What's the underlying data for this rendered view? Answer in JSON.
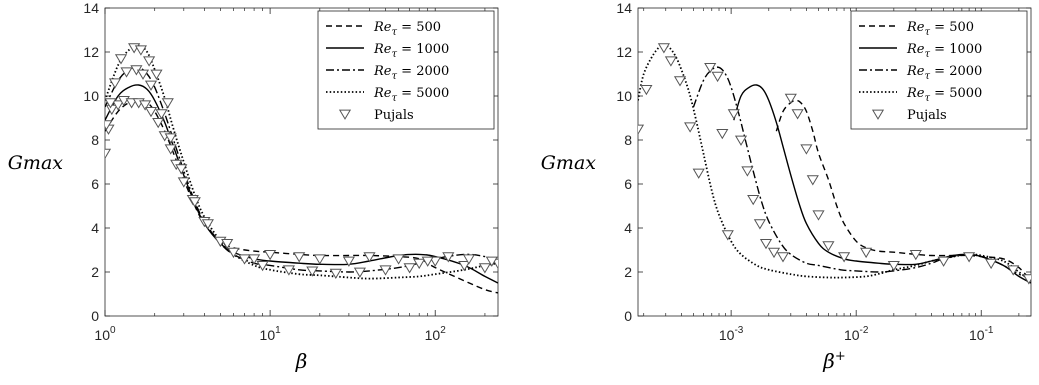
{
  "figure": {
    "panels": [
      "left",
      "right"
    ]
  },
  "chart_data": [
    {
      "type": "line",
      "xlabel": "β",
      "ylabel": "Gmax",
      "xscale": "log",
      "xlim": [
        1,
        240
      ],
      "ylim": [
        0,
        14
      ],
      "x_ticks": [
        1,
        10,
        100
      ],
      "x_tick_labels": [
        {
          "base": "10",
          "exp": "0"
        },
        {
          "base": "10",
          "exp": "1"
        },
        {
          "base": "10",
          "exp": "2"
        }
      ],
      "y_ticks": [
        0,
        2,
        4,
        6,
        8,
        10,
        12,
        14
      ],
      "y_tick_labels": [
        "0",
        "2",
        "4",
        "6",
        "8",
        "10",
        "12",
        "14"
      ],
      "legend": {
        "position": "top-right",
        "entries": [
          {
            "label": "Re_τ = 500",
            "style": "dashed"
          },
          {
            "label": "Re_τ = 1000",
            "style": "solid"
          },
          {
            "label": "Re_τ = 2000",
            "style": "dashdot"
          },
          {
            "label": "Re_τ = 5000",
            "style": "dotted"
          },
          {
            "label": "Pujals",
            "style": "triangle-marker"
          }
        ]
      },
      "series": [
        {
          "name": "Re_τ = 500",
          "style": "dashed",
          "x": [
            1,
            1.2,
            1.4,
            1.6,
            1.8,
            2,
            2.3,
            2.6,
            3,
            3.5,
            4,
            5,
            6,
            8,
            10,
            15,
            20,
            30,
            40,
            60,
            80,
            100,
            150,
            200,
            240
          ],
          "y": [
            8.4,
            9.3,
            9.7,
            9.8,
            9.7,
            9.3,
            8.4,
            7.4,
            6.2,
            5.0,
            4.2,
            3.4,
            3.1,
            2.95,
            2.9,
            2.8,
            2.75,
            2.75,
            2.75,
            2.7,
            2.6,
            2.2,
            1.6,
            1.2,
            1.05
          ]
        },
        {
          "name": "Re_τ = 1000",
          "style": "solid",
          "x": [
            1,
            1.2,
            1.4,
            1.6,
            1.8,
            2,
            2.3,
            2.6,
            3,
            3.5,
            4,
            5,
            6,
            8,
            10,
            15,
            20,
            30,
            40,
            60,
            80,
            100,
            150,
            200,
            240
          ],
          "y": [
            8.9,
            10.0,
            10.4,
            10.5,
            10.3,
            9.8,
            8.8,
            7.7,
            6.4,
            5.1,
            4.2,
            3.3,
            2.9,
            2.6,
            2.5,
            2.4,
            2.35,
            2.35,
            2.5,
            2.75,
            2.8,
            2.7,
            2.3,
            1.8,
            1.5
          ]
        },
        {
          "name": "Re_τ = 2000",
          "style": "dashdot",
          "x": [
            1,
            1.2,
            1.4,
            1.6,
            1.8,
            2,
            2.3,
            2.6,
            3,
            3.5,
            4,
            5,
            6,
            8,
            10,
            15,
            20,
            30,
            40,
            60,
            80,
            100,
            150,
            200,
            240
          ],
          "y": [
            9.5,
            10.7,
            11.2,
            11.3,
            11.0,
            10.4,
            9.2,
            8.0,
            6.6,
            5.2,
            4.3,
            3.3,
            2.8,
            2.4,
            2.3,
            2.1,
            2.05,
            2.0,
            2.05,
            2.2,
            2.4,
            2.6,
            2.8,
            2.7,
            2.5
          ]
        },
        {
          "name": "Re_τ = 5000",
          "style": "dotted",
          "x": [
            1,
            1.2,
            1.4,
            1.6,
            1.8,
            2,
            2.3,
            2.6,
            3,
            3.5,
            4,
            5,
            6,
            8,
            10,
            15,
            20,
            30,
            40,
            60,
            80,
            100,
            150,
            200,
            240
          ],
          "y": [
            9.8,
            11.4,
            12.1,
            12.3,
            12.0,
            11.2,
            9.9,
            8.5,
            7.0,
            5.5,
            4.5,
            3.4,
            2.8,
            2.3,
            2.1,
            1.9,
            1.85,
            1.75,
            1.7,
            1.75,
            1.8,
            1.9,
            2.1,
            2.3,
            2.4
          ]
        },
        {
          "name": "Pujals",
          "style": "triangle-marker",
          "x": [
            1,
            1.05,
            1.1,
            1.2,
            1.3,
            1.45,
            1.6,
            1.75,
            1.9,
            2.1,
            2.3,
            2.5,
            2.7,
            3,
            3.4,
            4,
            5,
            6,
            8,
            10,
            15,
            20,
            30,
            40,
            60,
            80,
            100,
            150,
            200,
            240,
            1.02,
            1.15,
            1.35,
            1.55,
            1.7,
            1.9,
            2.2,
            2.5,
            2.9,
            3.5,
            4.2,
            5.5,
            7,
            9,
            13,
            18,
            25,
            35,
            50,
            70,
            90,
            120,
            160,
            220,
            1.08,
            1.25,
            1.5,
            1.65,
            1.85,
            2.05,
            2.4
          ],
          "y": [
            7.4,
            8.5,
            9.4,
            9.6,
            9.8,
            9.7,
            9.7,
            9.6,
            9.3,
            8.8,
            8.2,
            7.6,
            6.9,
            6.1,
            5.3,
            4.3,
            3.4,
            2.9,
            2.6,
            2.8,
            2.7,
            2.6,
            2.5,
            2.7,
            2.6,
            2.4,
            2.5,
            2.3,
            2.2,
            2.4,
            8.7,
            10.6,
            11.1,
            11.2,
            11.0,
            10.5,
            9.2,
            8.1,
            6.7,
            5.2,
            4.2,
            3.3,
            2.6,
            2.3,
            2.1,
            2.05,
            1.95,
            2.0,
            2.1,
            2.2,
            2.5,
            2.7,
            2.6,
            2.5,
            9.7,
            11.7,
            12.2,
            12.1,
            11.6,
            11.0,
            9.7
          ]
        }
      ]
    },
    {
      "type": "line",
      "xlabel": "β+",
      "ylabel": "Gmax",
      "xscale": "log",
      "xlim": [
        0.00018,
        0.25
      ],
      "ylim": [
        0,
        14
      ],
      "x_ticks": [
        0.001,
        0.01,
        0.1
      ],
      "x_tick_labels": [
        {
          "base": "10",
          "exp": "-3"
        },
        {
          "base": "10",
          "exp": "-2"
        },
        {
          "base": "10",
          "exp": "-1"
        }
      ],
      "y_ticks": [
        0,
        2,
        4,
        6,
        8,
        10,
        12,
        14
      ],
      "y_tick_labels": [
        "0",
        "2",
        "4",
        "6",
        "8",
        "10",
        "12",
        "14"
      ],
      "legend": {
        "position": "top-right",
        "entries": [
          {
            "label": "Re_τ = 500",
            "style": "dashed"
          },
          {
            "label": "Re_τ = 1000",
            "style": "solid"
          },
          {
            "label": "Re_τ = 2000",
            "style": "dashdot"
          },
          {
            "label": "Re_τ = 5000",
            "style": "dotted"
          },
          {
            "label": "Pujals",
            "style": "triangle-marker"
          }
        ]
      },
      "series": [
        {
          "name": "Re_τ = 500",
          "style": "dashed",
          "x": [
            0.0023,
            0.0026,
            0.003,
            0.0033,
            0.0036,
            0.004,
            0.0045,
            0.005,
            0.006,
            0.007,
            0.008,
            0.01,
            0.012,
            0.015,
            0.02,
            0.03,
            0.04,
            0.06,
            0.08,
            0.1,
            0.15,
            0.2,
            0.25
          ],
          "y": [
            8.4,
            9.3,
            9.7,
            9.8,
            9.7,
            9.3,
            8.4,
            7.4,
            6.2,
            5.0,
            4.2,
            3.4,
            3.1,
            2.95,
            2.9,
            2.8,
            2.75,
            2.75,
            2.75,
            2.7,
            2.6,
            2.2,
            1.6
          ]
        },
        {
          "name": "Re_τ = 1000",
          "style": "solid",
          "x": [
            0.00105,
            0.0012,
            0.0014,
            0.0016,
            0.0018,
            0.002,
            0.0023,
            0.0026,
            0.003,
            0.0035,
            0.004,
            0.005,
            0.006,
            0.008,
            0.01,
            0.015,
            0.02,
            0.03,
            0.04,
            0.06,
            0.08,
            0.1,
            0.15,
            0.2,
            0.25
          ],
          "y": [
            8.9,
            10.0,
            10.4,
            10.5,
            10.3,
            9.8,
            8.8,
            7.7,
            6.4,
            5.1,
            4.2,
            3.3,
            2.9,
            2.6,
            2.5,
            2.4,
            2.35,
            2.35,
            2.5,
            2.75,
            2.8,
            2.7,
            2.3,
            1.8,
            1.5
          ]
        },
        {
          "name": "Re_τ = 2000",
          "style": "dashdot",
          "x": [
            0.0005,
            0.0006,
            0.0007,
            0.0008,
            0.0009,
            0.001,
            0.00115,
            0.0013,
            0.0015,
            0.00175,
            0.002,
            0.0025,
            0.003,
            0.004,
            0.005,
            0.0075,
            0.01,
            0.015,
            0.02,
            0.03,
            0.04,
            0.05,
            0.075,
            0.1,
            0.12,
            0.15,
            0.2,
            0.25
          ],
          "y": [
            9.5,
            10.7,
            11.2,
            11.3,
            11.0,
            10.4,
            9.2,
            8.0,
            6.6,
            5.2,
            4.3,
            3.3,
            2.8,
            2.4,
            2.3,
            2.1,
            2.05,
            2.0,
            2.05,
            2.2,
            2.4,
            2.6,
            2.8,
            2.7,
            2.55,
            2.3,
            1.9,
            1.7
          ]
        },
        {
          "name": "Re_τ = 5000",
          "style": "dotted",
          "x": [
            0.00018,
            0.0002,
            0.00024,
            0.00028,
            0.00032,
            0.00036,
            0.0004,
            0.00046,
            0.00052,
            0.0006,
            0.0007,
            0.0008,
            0.001,
            0.0012,
            0.0016,
            0.002,
            0.003,
            0.004,
            0.006,
            0.008,
            0.012,
            0.016,
            0.02,
            0.03,
            0.04,
            0.06,
            0.08,
            0.1,
            0.15,
            0.2,
            0.25
          ],
          "y": [
            9.8,
            11.0,
            11.9,
            12.3,
            12.2,
            11.8,
            11.2,
            10.2,
            9.0,
            7.4,
            5.7,
            4.6,
            3.4,
            2.8,
            2.3,
            2.1,
            1.9,
            1.8,
            1.75,
            1.75,
            1.8,
            1.95,
            2.1,
            2.3,
            2.5,
            2.7,
            2.8,
            2.75,
            2.5,
            2.0,
            1.6
          ]
        },
        {
          "name": "Pujals",
          "style": "triangle-marker",
          "x": [
            0.00018,
            0.00021,
            0.00029,
            0.00033,
            0.00039,
            0.00047,
            0.00055,
            0.00068,
            0.00078,
            0.00085,
            0.00094,
            0.00105,
            0.0012,
            0.00135,
            0.0015,
            0.0017,
            0.0019,
            0.0022,
            0.0026,
            0.003,
            0.0034,
            0.004,
            0.0045,
            0.005,
            0.006,
            0.008,
            0.012,
            0.02,
            0.03,
            0.05,
            0.08,
            0.12,
            0.18,
            0.24
          ],
          "y": [
            8.5,
            10.3,
            12.2,
            11.6,
            10.7,
            8.6,
            6.5,
            11.3,
            10.9,
            8.3,
            3.7,
            9.2,
            8.0,
            6.6,
            5.3,
            4.2,
            3.3,
            2.9,
            2.7,
            9.9,
            9.2,
            7.6,
            6.2,
            4.6,
            3.2,
            2.7,
            2.9,
            2.3,
            2.8,
            2.5,
            2.7,
            2.4,
            2.1,
            1.7
          ]
        }
      ]
    }
  ]
}
